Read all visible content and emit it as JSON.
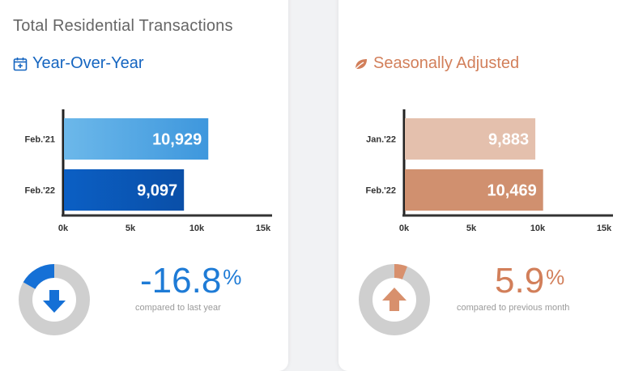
{
  "title": "Total Residential Transactions",
  "yoy": {
    "subtitle": "Year-Over-Year",
    "change": "-16.8",
    "unit": "%",
    "compare_text": "compared to last year",
    "direction": "down",
    "change_fraction": 0.168
  },
  "sa": {
    "subtitle": "Seasonally Adjusted",
    "change": "5.9",
    "unit": "%",
    "compare_text": "compared to previous month",
    "direction": "up",
    "change_fraction": 0.059
  },
  "colors": {
    "blue_accent": "#1565c0",
    "orange_accent": "#d27f5a",
    "donut_track": "#cfcfcf"
  },
  "chart_data": [
    {
      "type": "bar",
      "orientation": "horizontal",
      "categories": [
        "Feb.'21",
        "Feb.'22"
      ],
      "values": [
        10929,
        9097
      ],
      "value_labels": [
        "10,929",
        "9,097"
      ],
      "xticks": [
        "0k",
        "5k",
        "10k",
        "15k"
      ],
      "xlim": [
        0,
        15000
      ],
      "bar_colors": [
        [
          "#6cb8ea",
          "#3e97dd"
        ],
        [
          "#0b5fc4",
          "#0a4fa8"
        ]
      ]
    },
    {
      "type": "bar",
      "orientation": "horizontal",
      "categories": [
        "Jan.'22",
        "Feb.'22"
      ],
      "values": [
        9883,
        10469
      ],
      "value_labels": [
        "9,883",
        "10,469"
      ],
      "xticks": [
        "0k",
        "5k",
        "10k",
        "15k"
      ],
      "xlim": [
        0,
        15000
      ],
      "bar_colors": [
        [
          "#e4c0ad",
          "#e4c0ad"
        ],
        [
          "#d0906f",
          "#d0906f"
        ]
      ]
    }
  ]
}
